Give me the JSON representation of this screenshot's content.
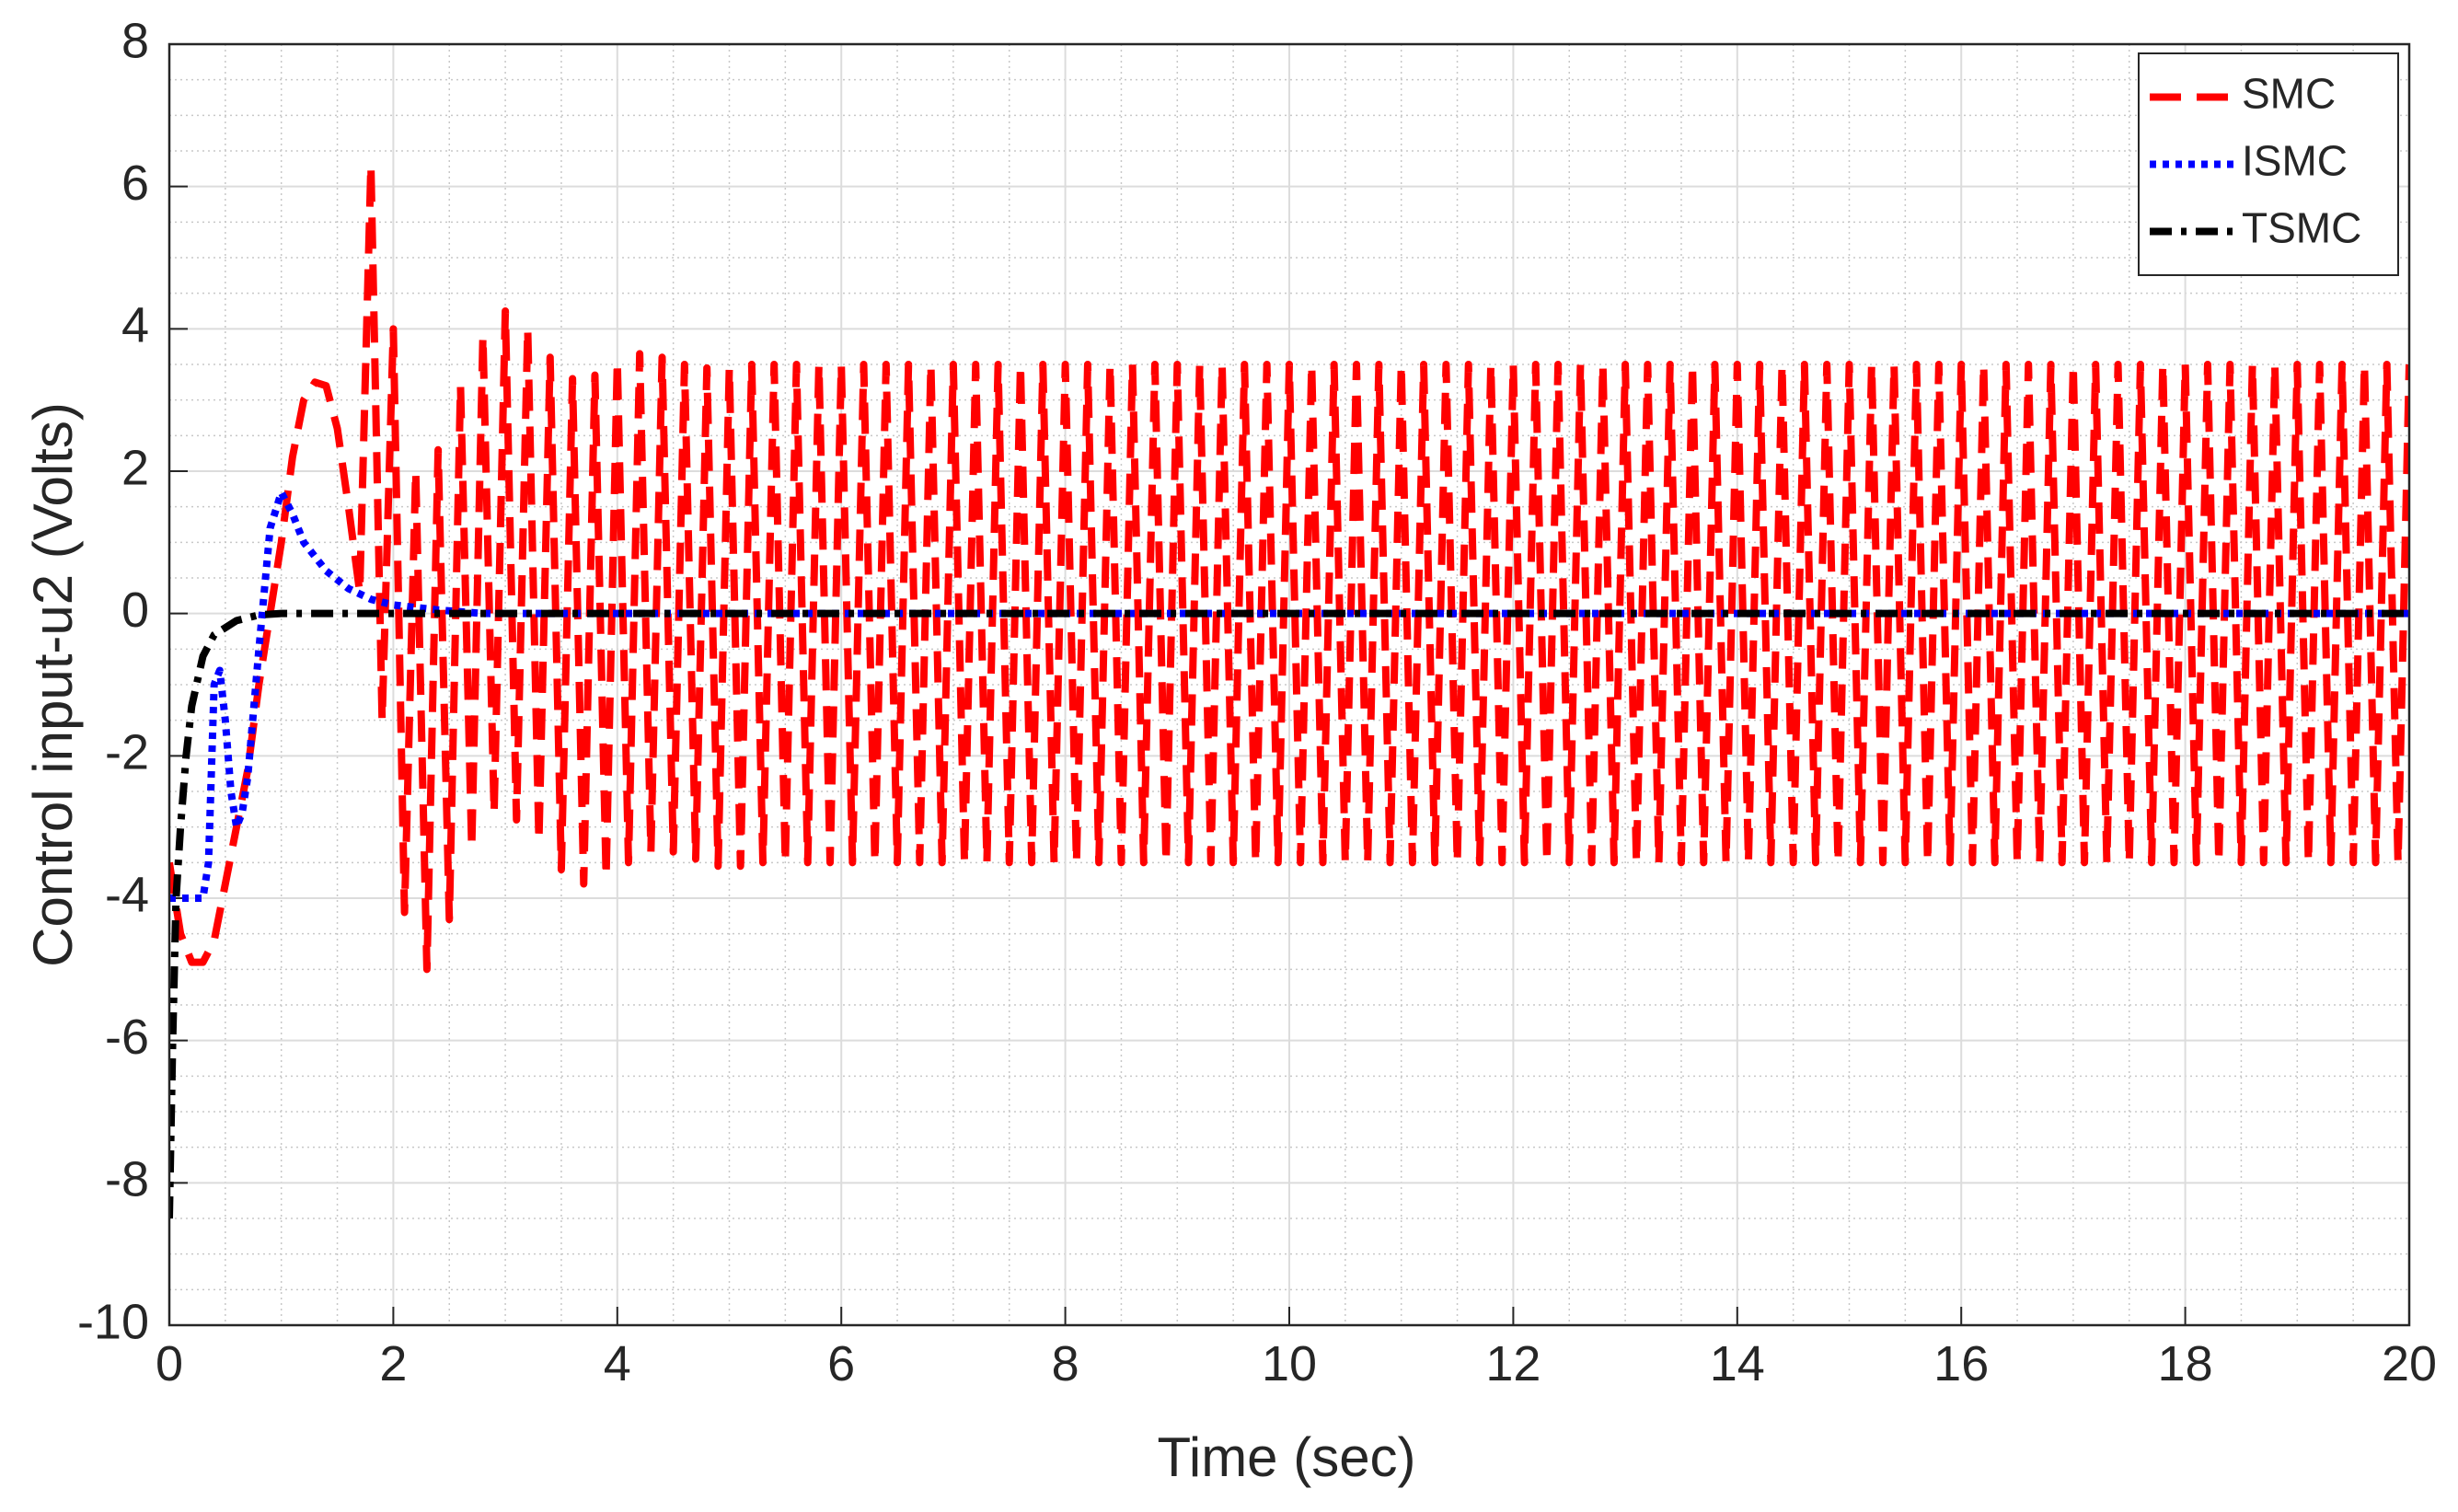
{
  "chart_data": {
    "type": "line",
    "xlabel": "Time (sec)",
    "ylabel": "Control input-u2 (Volts)",
    "xlim": [
      0,
      20
    ],
    "xticks": [
      0,
      2,
      4,
      6,
      8,
      10,
      12,
      14,
      16,
      18,
      20
    ],
    "ylim": [
      -10,
      8
    ],
    "yticks": [
      -10,
      -8,
      -6,
      -4,
      -2,
      0,
      2,
      4,
      6,
      8
    ],
    "grid": true,
    "minor_grid": true,
    "legend": "upper right",
    "series": [
      {
        "name": "SMC",
        "color": "#ff0000",
        "dash": "dashed",
        "x": [
          0,
          0.1,
          0.2,
          0.3,
          0.4,
          0.5,
          0.6,
          0.7,
          0.8,
          0.9,
          1,
          1.1,
          1.2,
          1.3,
          1.4,
          1.5,
          1.6,
          1.7,
          1.8,
          1.9,
          2,
          2.1,
          2.2,
          2.3,
          2.4,
          2.5,
          2.6,
          2.7,
          2.8,
          2.9,
          3,
          3.1,
          3.2,
          3.3,
          3.4,
          3.5,
          3.6,
          3.7,
          3.8,
          3.9,
          4,
          4.1,
          4.2,
          4.3,
          4.4,
          4.5,
          4.6,
          4.7,
          4.8,
          4.9,
          5,
          5.1,
          5.2,
          5.3,
          5.4,
          5.5,
          5.6,
          5.7,
          5.8,
          5.9,
          6,
          6.1,
          6.2,
          6.3,
          6.4,
          6.5,
          6.6,
          6.7,
          6.8,
          6.9,
          7,
          7.1,
          7.2,
          7.3,
          7.4,
          7.5,
          7.6,
          7.7,
          7.8,
          7.9,
          8,
          8.1,
          8.2,
          8.3,
          8.4,
          8.5,
          8.6,
          8.7,
          8.8,
          8.9,
          9,
          9.1,
          9.2,
          9.3,
          9.4,
          9.5,
          9.6,
          9.7,
          9.8,
          9.9,
          10,
          10.1,
          10.2,
          10.3,
          10.4,
          10.5,
          10.6,
          10.7,
          10.8,
          10.9,
          11,
          11.1,
          11.2,
          11.3,
          11.4,
          11.5,
          11.6,
          11.7,
          11.8,
          11.9,
          12,
          12.1,
          12.2,
          12.3,
          12.4,
          12.5,
          12.6,
          12.7,
          12.8,
          12.9,
          13,
          13.1,
          13.2,
          13.3,
          13.4,
          13.5,
          13.6,
          13.7,
          13.8,
          13.9,
          14,
          14.1,
          14.2,
          14.3,
          14.4,
          14.5,
          14.6,
          14.7,
          14.8,
          14.9,
          15,
          15.1,
          15.2,
          15.3,
          15.4,
          15.5,
          15.6,
          15.7,
          15.8,
          15.9,
          16,
          16.1,
          16.2,
          16.3,
          16.4,
          16.5,
          16.6,
          16.7,
          16.8,
          16.9,
          17,
          17.1,
          17.2,
          17.3,
          17.4,
          17.5,
          17.6,
          17.7,
          17.8,
          17.9,
          18,
          18.1,
          18.2,
          18.3,
          18.4,
          18.5,
          18.6,
          18.7,
          18.8,
          18.9,
          19,
          19.1,
          19.2,
          19.3,
          19.4,
          19.5,
          19.6,
          19.7,
          19.8,
          19.9,
          20
        ],
        "values": [
          -3.5,
          -4.5,
          -4.9,
          -4.9,
          -4.6,
          -3.8,
          -3.0,
          -2.2,
          -1.0,
          0.0,
          1.0,
          2.2,
          3.0,
          3.25,
          3.2,
          2.6,
          1.5,
          0.3,
          6.3,
          -1.5,
          4.0,
          -4.2,
          2.0,
          -5.0,
          2.3,
          -4.3,
          3.2,
          -3.3,
          3.9,
          -2.8,
          4.25,
          -2.9,
          4.0,
          -3.2,
          3.6,
          -3.6,
          3.3,
          -3.8,
          3.35,
          -3.7,
          3.55,
          -3.5,
          3.65,
          -3.35,
          3.6,
          -3.35,
          3.5,
          -3.45,
          3.45,
          -3.55,
          3.45,
          -3.55,
          3.5,
          -3.5,
          3.5,
          -3.5,
          3.5,
          -3.5,
          3.5,
          -3.5,
          3.5,
          -3.5,
          3.5,
          -3.5,
          3.5,
          -3.5,
          3.5,
          -3.5,
          3.5,
          -3.5,
          3.5,
          -3.5,
          3.5,
          -3.5,
          3.5,
          -3.5,
          3.5,
          -3.5,
          3.5,
          -3.5,
          3.5,
          -3.5,
          3.5,
          -3.5,
          3.5,
          -3.5,
          3.5,
          -3.5,
          3.5,
          -3.5,
          3.5,
          -3.5,
          3.5,
          -3.5,
          3.5,
          -3.5,
          3.5,
          -3.5,
          3.5,
          -3.5,
          3.5,
          -3.5,
          3.5,
          -3.5,
          3.5,
          -3.5,
          3.5,
          -3.5,
          3.5,
          -3.5,
          3.5,
          -3.5,
          3.5,
          -3.5,
          3.5,
          -3.5,
          3.5,
          -3.5,
          3.5,
          -3.5,
          3.5,
          -3.5,
          3.5,
          -3.5,
          3.5,
          -3.5,
          3.5,
          -3.5,
          3.5,
          -3.5,
          3.5,
          -3.5,
          3.5,
          -3.5,
          3.5,
          -3.5,
          3.5,
          -3.5,
          3.5,
          -3.5,
          3.5,
          -3.5,
          3.5,
          -3.5,
          3.5,
          -3.5,
          3.5,
          -3.5,
          3.5,
          -3.5,
          3.5,
          -3.5,
          3.5,
          -3.5,
          3.5,
          -3.5,
          3.5,
          -3.5,
          3.5,
          -3.5,
          3.5,
          -3.5,
          3.5,
          -3.5,
          3.5,
          -3.5,
          3.5,
          -3.5,
          3.5,
          -3.5,
          3.5,
          -3.5,
          3.5,
          -3.5,
          3.5,
          -3.5,
          3.5,
          -3.5,
          3.5,
          -3.5,
          3.5,
          -3.5,
          3.5,
          -3.5,
          3.5,
          -3.5,
          3.5,
          -3.5,
          3.5,
          -3.5,
          3.5,
          -3.5,
          3.5,
          -3.5,
          3.5,
          -3.5,
          3.5,
          -3.5,
          3.5,
          -3.5,
          3.5
        ]
      },
      {
        "name": "ISMC",
        "color": "#0000ff",
        "dash": "dotted",
        "x": [
          0,
          0.1,
          0.2,
          0.3,
          0.35,
          0.4,
          0.45,
          0.5,
          0.55,
          0.6,
          0.65,
          0.7,
          0.8,
          0.9,
          1,
          1.1,
          1.2,
          1.4,
          1.6,
          1.8,
          2,
          2.4,
          2.8,
          20
        ],
        "values": [
          -4,
          -4,
          -4,
          -4,
          -3.5,
          -1,
          -0.8,
          -1.5,
          -2.5,
          -3.0,
          -2.8,
          -2.3,
          -0.5,
          1.2,
          1.7,
          1.4,
          1.0,
          0.6,
          0.35,
          0.2,
          0.12,
          0.05,
          0,
          0
        ]
      },
      {
        "name": "TSMC",
        "color": "#000000",
        "dash": "dashdot",
        "x": [
          0,
          0.03,
          0.06,
          0.1,
          0.15,
          0.2,
          0.3,
          0.4,
          0.6,
          0.8,
          1,
          20
        ],
        "values": [
          -8.5,
          -6,
          -4,
          -3,
          -2,
          -1.3,
          -0.6,
          -0.3,
          -0.1,
          -0.02,
          0,
          0
        ]
      }
    ]
  }
}
